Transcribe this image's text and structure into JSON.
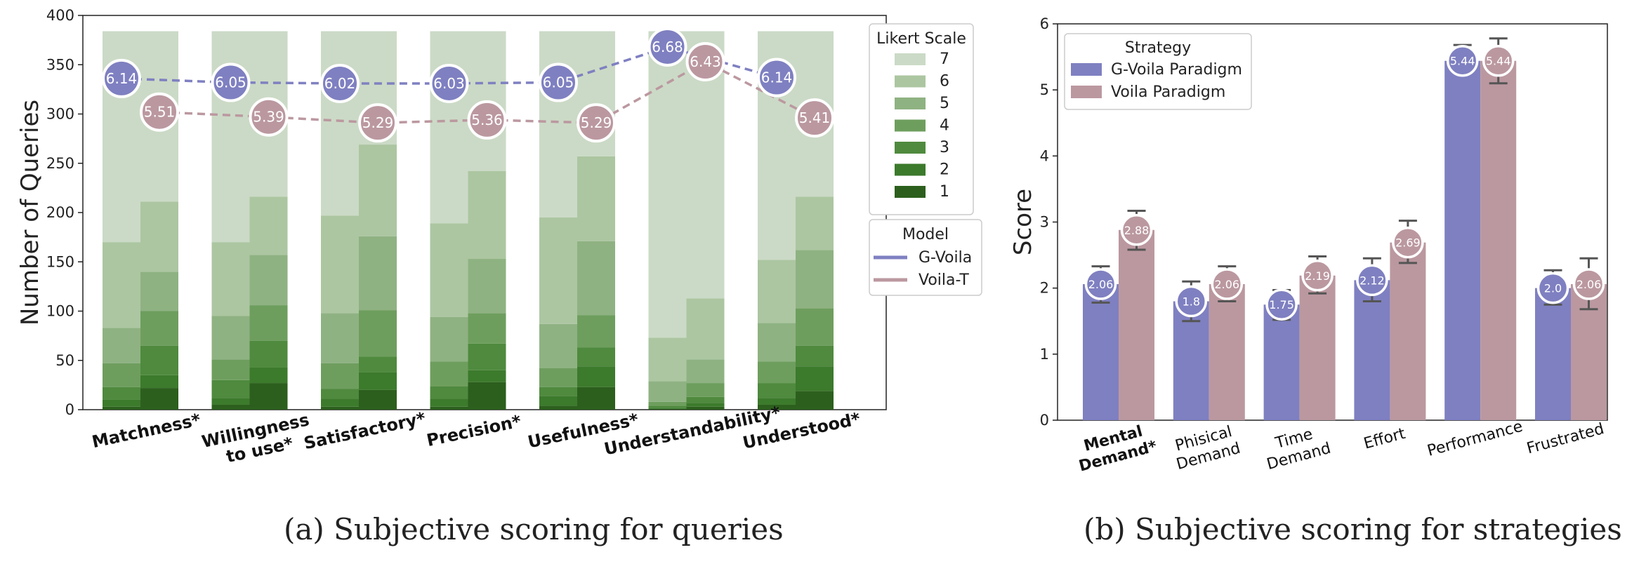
{
  "captions": {
    "left": "(a) Subjective scoring for queries",
    "right": "(b) Subjective scoring for strategies"
  },
  "chart_data": [
    {
      "type": "bar",
      "stacked": true,
      "title": "",
      "xlabel": "",
      "ylabel": "Number of Queries",
      "ylim": [
        0,
        400
      ],
      "yticks": [
        0,
        50,
        100,
        150,
        200,
        250,
        300,
        350,
        400
      ],
      "categories": [
        "Matchness*",
        "Willingness to use*",
        "Satisfactory*",
        "Precision*",
        "Usefulness*",
        "Understandability*",
        "Understood*"
      ],
      "category_labels": [
        [
          "Matchness*"
        ],
        [
          "Willingness",
          "to use*"
        ],
        [
          "Satisfactory*"
        ],
        [
          "Precision*"
        ],
        [
          "Usefulness*"
        ],
        [
          "Understandability*"
        ],
        [
          "Understood*"
        ]
      ],
      "likert_legend": {
        "title": "Likert Scale",
        "levels": [
          "7",
          "6",
          "5",
          "4",
          "3",
          "2",
          "1"
        ],
        "colors": {
          "1": "#2c5f1d",
          "2": "#3c7a2c",
          "3": "#4f8a3e",
          "4": "#6e9e5e",
          "5": "#8fb282",
          "6": "#acc6a1",
          "7": "#cbdac6"
        }
      },
      "model_legend": {
        "title": "Model",
        "entries": [
          {
            "name": "G-Voila",
            "color": "#7f80c1"
          },
          {
            "name": "Voila-T",
            "color": "#bb98a0"
          }
        ]
      },
      "cumulative_per_bar": [
        {
          "category": "Matchness*",
          "model": "G-Voila",
          "cum": [
            3,
            10,
            23,
            47,
            83,
            170,
            384
          ]
        },
        {
          "category": "Matchness*",
          "model": "Voila-T",
          "cum": [
            22,
            35,
            65,
            100,
            140,
            211,
            384
          ]
        },
        {
          "category": "Willingness to use*",
          "model": "G-Voila",
          "cum": [
            5,
            12,
            30,
            51,
            95,
            170,
            384
          ]
        },
        {
          "category": "Willingness to use*",
          "model": "Voila-T",
          "cum": [
            27,
            43,
            70,
            106,
            157,
            216,
            384
          ]
        },
        {
          "category": "Satisfactory*",
          "model": "G-Voila",
          "cum": [
            3,
            11,
            21,
            47,
            98,
            197,
            384
          ]
        },
        {
          "category": "Satisfactory*",
          "model": "Voila-T",
          "cum": [
            20,
            38,
            54,
            101,
            176,
            269,
            384
          ]
        },
        {
          "category": "Precision*",
          "model": "G-Voila",
          "cum": [
            3,
            11,
            24,
            49,
            94,
            189,
            384
          ]
        },
        {
          "category": "Precision*",
          "model": "Voila-T",
          "cum": [
            28,
            40,
            67,
            98,
            153,
            242,
            384
          ]
        },
        {
          "category": "Usefulness*",
          "model": "G-Voila",
          "cum": [
            4,
            14,
            23,
            42,
            87,
            195,
            384
          ]
        },
        {
          "category": "Usefulness*",
          "model": "Voila-T",
          "cum": [
            23,
            44,
            63,
            96,
            171,
            257,
            384
          ]
        },
        {
          "category": "Understandability*",
          "model": "G-Voila",
          "cum": [
            1,
            2,
            4,
            8,
            29,
            73,
            384
          ]
        },
        {
          "category": "Understandability*",
          "model": "Voila-T",
          "cum": [
            3,
            7,
            13,
            27,
            51,
            113,
            384
          ]
        },
        {
          "category": "Understood*",
          "model": "G-Voila",
          "cum": [
            5,
            12,
            27,
            49,
            88,
            152,
            384
          ]
        },
        {
          "category": "Understood*",
          "model": "Voila-T",
          "cum": [
            19,
            44,
            65,
            103,
            162,
            216,
            384
          ]
        }
      ],
      "mean_lines": [
        {
          "model": "G-Voila",
          "color": "#7f80c1",
          "positions": [
            336,
            332,
            331,
            331,
            332,
            368,
            337
          ],
          "labels": [
            "6.14",
            "6.05",
            "6.02",
            "6.03",
            "6.05",
            "6.68",
            "6.14"
          ]
        },
        {
          "model": "Voila-T",
          "color": "#bb98a0",
          "positions": [
            302,
            297,
            291,
            294,
            291,
            353,
            296
          ],
          "labels": [
            "5.51",
            "5.39",
            "5.29",
            "5.36",
            "5.29",
            "6.43",
            "5.41"
          ]
        }
      ]
    },
    {
      "type": "bar",
      "title": "",
      "xlabel": "",
      "ylabel": "Score",
      "ylim": [
        0,
        6
      ],
      "yticks": [
        0,
        1,
        2,
        3,
        4,
        5,
        6
      ],
      "legend": {
        "title": "Strategy",
        "placement": "top-left"
      },
      "categories": [
        "Mental Demand*",
        "Phisical Demand",
        "Time Demand",
        "Effort",
        "Performance",
        "Frustrated"
      ],
      "category_labels": [
        [
          "Mental",
          "Demand*"
        ],
        [
          "Phisical",
          "Demand"
        ],
        [
          "Time",
          "Demand"
        ],
        [
          "Effort"
        ],
        [
          "Performance"
        ],
        [
          "Frustrated"
        ]
      ],
      "bold_categories": [
        0
      ],
      "series": [
        {
          "name": "G-Voila Paradigm",
          "color": "#7f80c1",
          "values": [
            2.06,
            1.8,
            1.75,
            2.12,
            5.44,
            2.0
          ],
          "labels": [
            "2.06",
            "1.8",
            "1.75",
            "2.12",
            "5.44",
            "2.0"
          ],
          "err_low": [
            1.78,
            1.5,
            1.52,
            1.8,
            5.44,
            1.75
          ],
          "err_high": [
            2.33,
            2.1,
            1.97,
            2.45,
            5.68,
            2.27
          ]
        },
        {
          "name": "Voila Paradigm",
          "color": "#bb98a0",
          "values": [
            2.88,
            2.06,
            2.19,
            2.69,
            5.44,
            2.06
          ],
          "labels": [
            "2.88",
            "2.06",
            "2.19",
            "2.69",
            "5.44",
            "2.06"
          ],
          "err_low": [
            2.58,
            1.8,
            1.92,
            2.38,
            5.1,
            1.68
          ],
          "err_high": [
            3.17,
            2.33,
            2.48,
            3.02,
            5.78,
            2.45
          ]
        }
      ]
    }
  ]
}
